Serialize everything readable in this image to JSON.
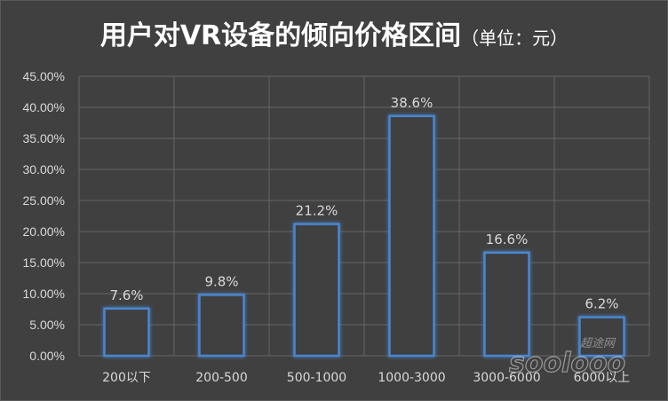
{
  "chart_data": {
    "type": "bar",
    "title": "用户对VR设备的倾向价格区间",
    "subtitle": "（单位：元）",
    "xlabel": "",
    "ylabel": "",
    "categories": [
      "200以下",
      "200-500",
      "500-1000",
      "1000-3000",
      "3000-6000",
      "6000以上"
    ],
    "values": [
      7.6,
      9.8,
      21.2,
      38.6,
      16.6,
      6.2
    ],
    "data_labels": [
      "7.6%",
      "9.8%",
      "21.2%",
      "38.6%",
      "16.6%",
      "6.2%"
    ],
    "ylim": [
      0,
      45
    ],
    "yticks": [
      0,
      5,
      10,
      15,
      20,
      25,
      30,
      35,
      40,
      45
    ],
    "ytick_labels": [
      "0.00%",
      "5.00%",
      "10.00%",
      "15.00%",
      "20.00%",
      "25.00%",
      "30.00%",
      "35.00%",
      "40.00%",
      "45.00%"
    ],
    "grid": true,
    "legend": "none",
    "colors": {
      "background": "#404040",
      "bar_outline": "#4a86d0",
      "bar_glow": "#2f63b0",
      "bar_fill": "#3f3f3f",
      "grid": "#666666",
      "text": "#d9d9d9",
      "title": "#ffffff"
    }
  },
  "watermark": {
    "logo_text": "soolooo",
    "cn_text": "超途网"
  }
}
